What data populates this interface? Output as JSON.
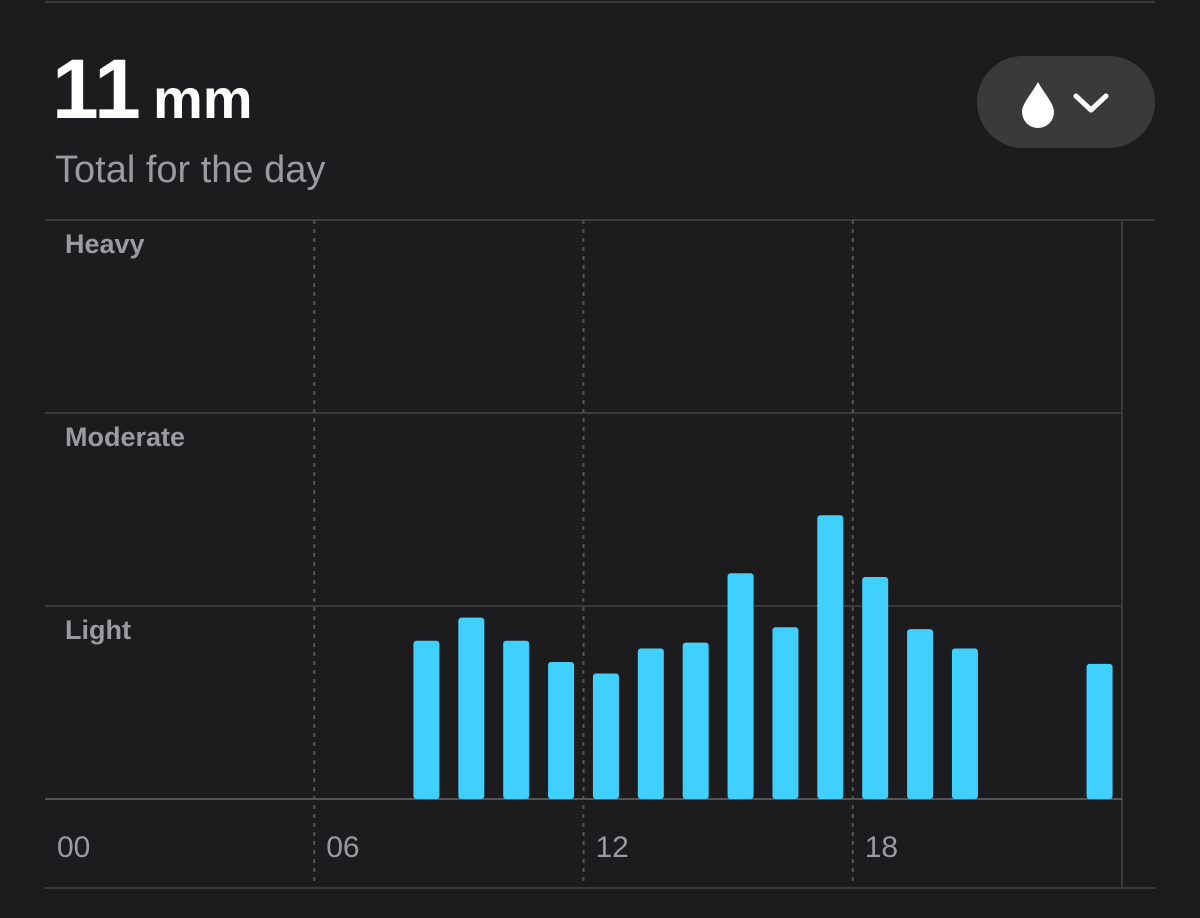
{
  "header": {
    "value": "11",
    "unit": "mm",
    "subtitle": "Total for the day"
  },
  "chart_data": {
    "type": "bar",
    "color": "#3fd0ff",
    "x": [
      8,
      9,
      10,
      11,
      12,
      13,
      14,
      15,
      16,
      17,
      18,
      19,
      20,
      23
    ],
    "values": [
      0.82,
      0.94,
      0.82,
      0.71,
      0.65,
      0.78,
      0.81,
      1.17,
      0.89,
      1.47,
      1.15,
      0.88,
      0.78,
      0.7
    ],
    "xlim": [
      0,
      24
    ],
    "xticks": [
      {
        "value": 0,
        "label": "00"
      },
      {
        "value": 6,
        "label": "06"
      },
      {
        "value": 12,
        "label": "12"
      },
      {
        "value": 18,
        "label": "18"
      }
    ],
    "ylim": [
      0,
      3
    ],
    "yticks": [
      {
        "value": 1,
        "label": "Light"
      },
      {
        "value": 2,
        "label": "Moderate"
      },
      {
        "value": 3,
        "label": "Heavy"
      }
    ],
    "grid": true
  }
}
